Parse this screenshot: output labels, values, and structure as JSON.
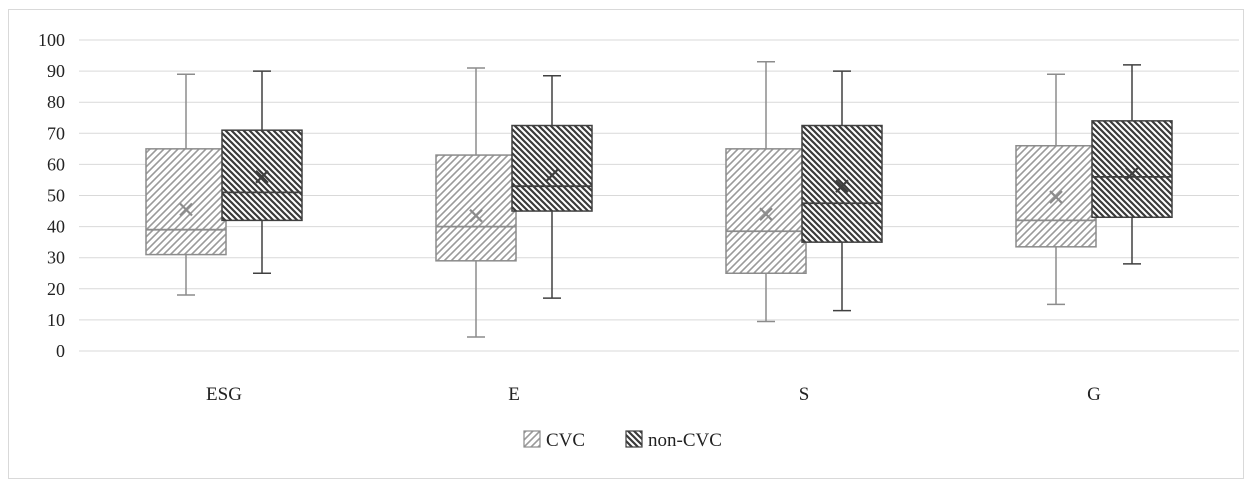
{
  "chart_data": {
    "type": "boxplot",
    "title": "",
    "xlabel": "",
    "ylabel": "",
    "ylim": [
      0,
      100
    ],
    "yticks": [
      0,
      10,
      20,
      30,
      40,
      50,
      60,
      70,
      80,
      90,
      100
    ],
    "grid": true,
    "legend_position": "bottom",
    "categories": [
      "ESG",
      "E",
      "S",
      "G"
    ],
    "series": [
      {
        "name": "CVC",
        "color": "#8c8c8c",
        "pattern": "light-diagonal-up",
        "boxes": [
          {
            "min": 18,
            "q1": 31,
            "median": 39,
            "q3": 65,
            "max": 89,
            "mean": 45.5
          },
          {
            "min": 4.5,
            "q1": 29,
            "median": 40,
            "q3": 63,
            "max": 91,
            "mean": 43.5
          },
          {
            "min": 9.5,
            "q1": 25,
            "median": 38.5,
            "q3": 65,
            "max": 93,
            "mean": 44
          },
          {
            "min": 15,
            "q1": 33.5,
            "median": 42,
            "q3": 66,
            "max": 89,
            "mean": 49.5
          }
        ]
      },
      {
        "name": "non-CVC",
        "color": "#404040",
        "pattern": "dark-diagonal-down",
        "boxes": [
          {
            "min": 25,
            "q1": 42,
            "median": 51,
            "q3": 71,
            "max": 90,
            "mean": 56
          },
          {
            "min": 17,
            "q1": 45,
            "median": 53,
            "q3": 72.5,
            "max": 88.5,
            "mean": 56.5
          },
          {
            "min": 13,
            "q1": 35,
            "median": 47.5,
            "q3": 72.5,
            "max": 90,
            "mean": 53
          },
          {
            "min": 28,
            "q1": 43,
            "median": 56,
            "q3": 74,
            "max": 92,
            "mean": 57
          }
        ]
      }
    ]
  }
}
